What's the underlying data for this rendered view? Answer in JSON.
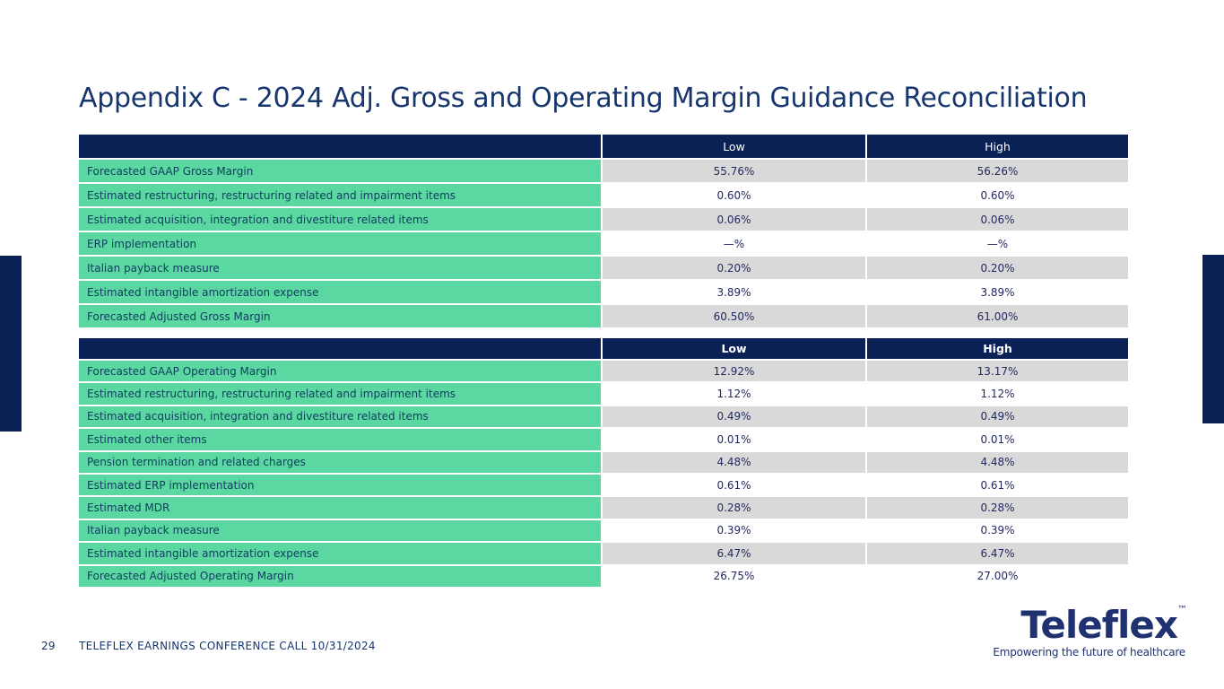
{
  "title": "Appendix C - 2024 Adj. Gross and Operating Margin Guidance Reconciliation",
  "colors": {
    "navy": "#0a2155",
    "green": "#5bd8a2",
    "gray": "#d9d9d9",
    "title_navy": "#17366d",
    "label_text": "#0e405e",
    "value_text": "#22295f",
    "logo_navy": "#1f3170"
  },
  "tables": [
    {
      "id": "gross-margin",
      "header": {
        "label": "",
        "low": "Low",
        "high": "High",
        "bold": false
      },
      "rows": [
        {
          "label": "Forecasted GAAP Gross Margin",
          "low": "55.76%",
          "high": "56.26%"
        },
        {
          "label": "Estimated restructuring, restructuring related and impairment items",
          "low": "0.60%",
          "high": "0.60%"
        },
        {
          "label": "Estimated acquisition, integration and divestiture related items",
          "low": "0.06%",
          "high": "0.06%"
        },
        {
          "label": "ERP implementation",
          "low": "—%",
          "high": "—%"
        },
        {
          "label": "Italian payback measure",
          "low": "0.20%",
          "high": "0.20%"
        },
        {
          "label": "Estimated intangible amortization expense",
          "low": "3.89%",
          "high": "3.89%"
        },
        {
          "label": "Forecasted Adjusted Gross Margin",
          "low": "60.50%",
          "high": "61.00%"
        }
      ]
    },
    {
      "id": "operating-margin",
      "header": {
        "label": "",
        "low": "Low",
        "high": "High",
        "bold": true
      },
      "rows": [
        {
          "label": "Forecasted GAAP Operating Margin",
          "low": "12.92%",
          "high": "13.17%"
        },
        {
          "label": "Estimated restructuring, restructuring related and impairment items",
          "low": "1.12%",
          "high": "1.12%"
        },
        {
          "label": "Estimated acquisition, integration and divestiture related items",
          "low": "0.49%",
          "high": "0.49%"
        },
        {
          "label": "Estimated other items",
          "low": "0.01%",
          "high": "0.01%"
        },
        {
          "label": "Pension termination and related charges",
          "low": "4.48%",
          "high": "4.48%"
        },
        {
          "label": "Estimated ERP implementation",
          "low": "0.61%",
          "high": "0.61%"
        },
        {
          "label": "Estimated MDR",
          "low": "0.28%",
          "high": "0.28%"
        },
        {
          "label": "Italian payback measure",
          "low": "0.39%",
          "high": "0.39%"
        },
        {
          "label": "Estimated intangible amortization expense",
          "low": "6.47%",
          "high": "6.47%"
        },
        {
          "label": "Forecasted Adjusted Operating Margin",
          "low": "26.75%",
          "high": "27.00%"
        }
      ]
    }
  ],
  "footer": {
    "page_number": "29",
    "label": "TELEFLEX EARNINGS CONFERENCE CALL 10/31/2024"
  },
  "logo": {
    "wordmark": "Teleflex",
    "trademark": "™",
    "tagline": "Empowering the future of healthcare"
  }
}
